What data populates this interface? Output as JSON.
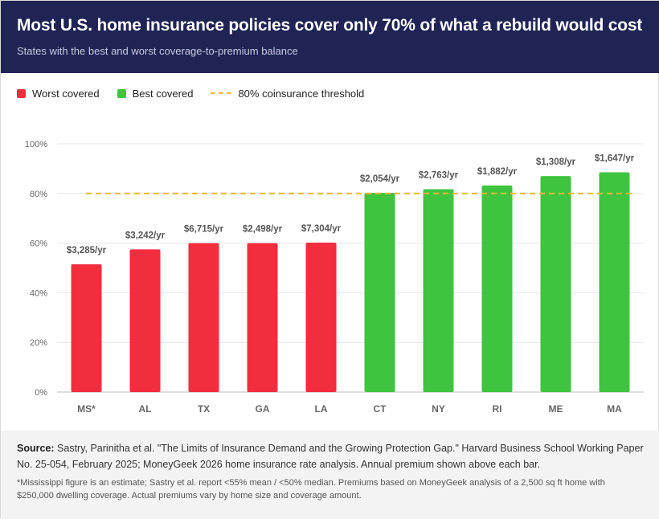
{
  "header": {
    "title": "Most U.S. home insurance policies cover only 70% of what a rebuild would cost",
    "subtitle": "States with the best and worst coverage-to-premium balance"
  },
  "legend": {
    "worst_label": "Worst covered",
    "best_label": "Best covered",
    "threshold_label": "80% coinsurance threshold"
  },
  "colors": {
    "worst": "#f22d3e",
    "best": "#3fc43f",
    "threshold": "#e8b93a",
    "header_bg": "#1f2455"
  },
  "chart_data": {
    "type": "bar",
    "categories": [
      "MS*",
      "AL",
      "TX",
      "GA",
      "LA",
      "CT",
      "NY",
      "RI",
      "ME",
      "MA"
    ],
    "values": [
      51.5,
      57.5,
      60,
      60,
      60.2,
      80.2,
      81.7,
      83.2,
      87,
      88.5
    ],
    "groups": [
      "worst",
      "worst",
      "worst",
      "worst",
      "worst",
      "best",
      "best",
      "best",
      "best",
      "best"
    ],
    "bar_labels": [
      "$3,285/yr",
      "$3,242/yr",
      "$6,715/yr",
      "$2,498/yr",
      "$7,304/yr",
      "$2,054/yr",
      "$2,763/yr",
      "$1,882/yr",
      "$1,308/yr",
      "$1,647/yr"
    ],
    "y_ticks": [
      "0%",
      "20%",
      "40%",
      "60%",
      "80%",
      "100%"
    ],
    "y_tick_values": [
      0,
      20,
      40,
      60,
      80,
      100
    ],
    "ylim": [
      0,
      100
    ],
    "threshold": 80,
    "grid": true,
    "legend_position": "top-left"
  },
  "footer": {
    "source_label": "Source:",
    "source_text": "Sastry, Parinitha et al. \"The Limits of Insurance Demand and the Growing Protection Gap.\" Harvard Business School Working Paper No. 25-054, February 2025; MoneyGeek 2026 home insurance rate analysis. Annual premium shown above each bar.",
    "note": "*Mississippi figure is an estimate; Sastry et al. report <55% mean / <50% median. Premiums based on MoneyGeek analysis of a 2,500 sq ft home with $250,000 dwelling coverage. Actual premiums vary by home size and coverage amount."
  }
}
